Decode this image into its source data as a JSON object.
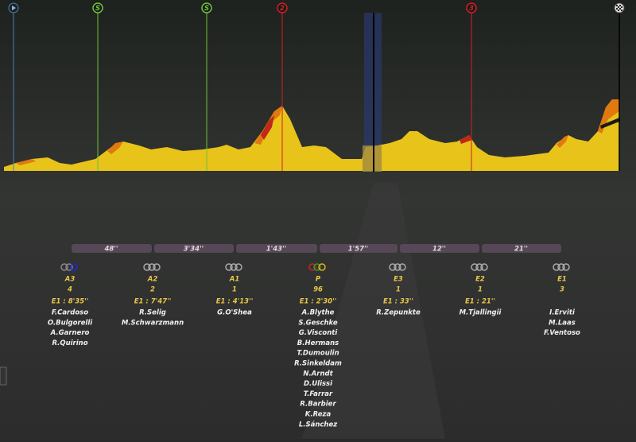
{
  "markers": [
    "S",
    "S",
    "2",
    "3"
  ],
  "gaps": [
    "48''",
    "3'34''",
    "1'43''",
    "1'57''",
    "12''",
    "21''"
  ],
  "groups": [
    {
      "label": "A3",
      "count": 4,
      "time": "E1 : 8'35''",
      "riders": [
        "F.Cardoso",
        "O.Bulgorelli",
        "A.Garnero",
        "R.Quirino"
      ]
    },
    {
      "label": "A2",
      "count": 2,
      "time": "E1 : 7'47''",
      "riders": [
        "R.Selig",
        "M.Schwarzmann"
      ]
    },
    {
      "label": "A1",
      "count": 1,
      "time": "E1 : 4'13''",
      "riders": [
        "G.O'Shea"
      ]
    },
    {
      "label": "P",
      "count": 96,
      "time": "E1 : 2'30''",
      "riders": [
        "A.Blythe",
        "S.Geschke",
        "G.Visconti",
        "B.Hermans",
        "T.Dumoulin",
        "R.Sinkeldam",
        "N.Arndt",
        "D.Ulissi",
        "T.Farrar",
        "R.Barbier",
        "K.Reza",
        "L.Sánchez"
      ]
    },
    {
      "label": "E3",
      "count": 1,
      "time": "E1 : 33''",
      "riders": [
        "R.Zepunkte"
      ]
    },
    {
      "label": "E2",
      "count": 1,
      "time": "E1 : 21''",
      "riders": [
        "M.Tjallingii"
      ]
    },
    {
      "label": "E1",
      "count": 3,
      "riders": [
        "I.Erviti",
        "M.Laas",
        "F.Ventoso"
      ]
    }
  ]
}
